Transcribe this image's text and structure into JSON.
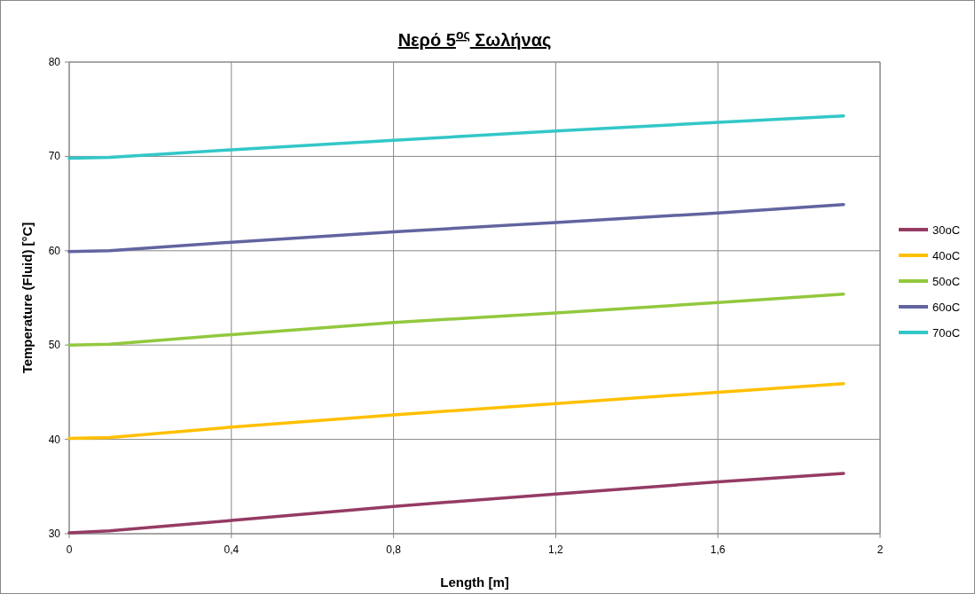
{
  "chart_data": {
    "type": "line",
    "title": "Νερό 5$^{ος}$ Σωλήνας",
    "xlabel": "Length [m]",
    "ylabel": "Temperature (Fluid) [°C]",
    "x": [
      0,
      0.1,
      0.4,
      0.8,
      1.2,
      1.6,
      1.91
    ],
    "series": [
      {
        "name": "30oC",
        "color": "#953b64",
        "values": [
          30.1,
          30.3,
          31.4,
          32.9,
          34.2,
          35.5,
          36.4
        ]
      },
      {
        "name": "40oC",
        "color": "#ffc000",
        "values": [
          40.1,
          40.2,
          41.3,
          42.6,
          43.8,
          45.0,
          45.9
        ]
      },
      {
        "name": "50oC",
        "color": "#92c83e",
        "values": [
          50.0,
          50.1,
          51.1,
          52.4,
          53.4,
          54.5,
          55.4
        ]
      },
      {
        "name": "60oC",
        "color": "#6264a0",
        "values": [
          59.9,
          60.0,
          60.9,
          62.0,
          63.0,
          64.0,
          64.9
        ]
      },
      {
        "name": "70oC",
        "color": "#33c7c7",
        "values": [
          69.8,
          69.9,
          70.7,
          71.7,
          72.7,
          73.6,
          74.3
        ]
      }
    ],
    "xlim": [
      0,
      2
    ],
    "xticks": [
      0,
      {
        "value": 0.4,
        "label": "0,4"
      },
      {
        "value": 0.8,
        "label": "0,8"
      },
      {
        "value": 1.2,
        "label": "1,2"
      },
      {
        "value": 1.6,
        "label": "1,6"
      },
      2
    ],
    "ylim": [
      30,
      80
    ],
    "yticks": [
      30,
      40,
      50,
      60,
      70,
      80
    ],
    "grid": true,
    "legend": "right",
    "marker": "none",
    "line_style": "solid"
  }
}
